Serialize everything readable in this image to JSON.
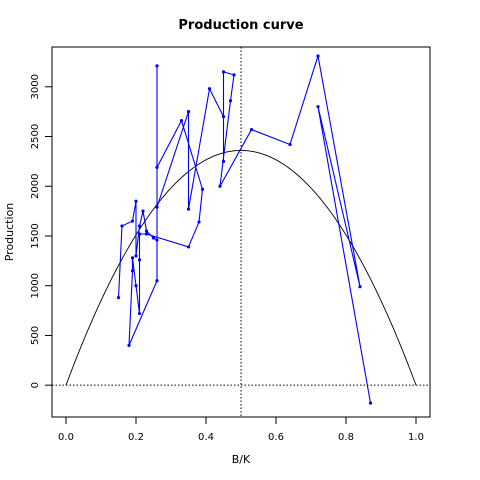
{
  "chart_data": {
    "type": "line",
    "title": "Production curve",
    "xlabel": "B/K",
    "ylabel": "Production",
    "xlim": [
      -0.04,
      1.04
    ],
    "ylim": [
      -320,
      3400
    ],
    "x_ticks": [
      0.0,
      0.2,
      0.4,
      0.6,
      0.8,
      1.0
    ],
    "x_tick_labels": [
      "0.0",
      "0.2",
      "0.4",
      "0.6",
      "0.8",
      "1.0"
    ],
    "y_ticks": [
      0,
      500,
      1000,
      1500,
      2000,
      2500,
      3000
    ],
    "y_tick_labels": [
      "0",
      "500",
      "1000",
      "1500",
      "2000",
      "2500",
      "3000"
    ],
    "reference_lines": {
      "vertical_x": 0.5,
      "horizontal_y": 0,
      "style": "dotted"
    },
    "curve": {
      "type": "parabola",
      "formula": "4 * peak * x * (1 - x)",
      "peak": 2360,
      "x_range": [
        0,
        1
      ],
      "color": "#000000"
    },
    "series": [
      {
        "color": "#0000ff",
        "marker": "point",
        "x": [
          0.15,
          0.16,
          0.19,
          0.2,
          0.2,
          0.21,
          0.22,
          0.23,
          0.25,
          0.26,
          0.26,
          0.26,
          0.18,
          0.19,
          0.19,
          0.2,
          0.21,
          0.21,
          0.21,
          0.23,
          0.35,
          0.38,
          0.39,
          0.33,
          0.26,
          0.26,
          0.35,
          0.35,
          0.41,
          0.45,
          0.45,
          0.45,
          0.48,
          0.47,
          0.44,
          0.53,
          0.64,
          0.72,
          0.84,
          0.72,
          0.87
        ],
        "y": [
          880,
          1600,
          1650,
          1850,
          1300,
          1600,
          1750,
          1550,
          1480,
          1460,
          3210,
          1050,
          400,
          1150,
          1280,
          1000,
          720,
          1260,
          1520,
          1520,
          1390,
          1640,
          1970,
          2660,
          2190,
          1790,
          2750,
          1770,
          2980,
          2700,
          2250,
          3150,
          3120,
          2860,
          2000,
          2570,
          2420,
          3310,
          990,
          2800,
          -180
        ]
      }
    ]
  }
}
